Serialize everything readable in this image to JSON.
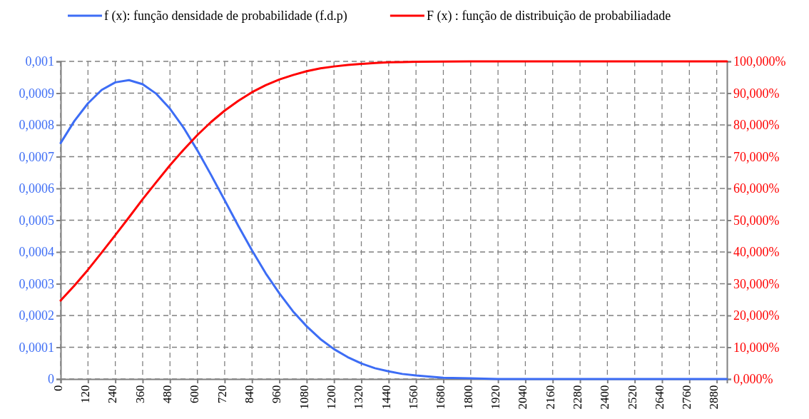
{
  "chart_data": {
    "type": "line",
    "x": [
      0,
      60,
      120,
      180,
      240,
      300,
      360,
      420,
      480,
      540,
      600,
      660,
      720,
      780,
      840,
      900,
      960,
      1020,
      1080,
      1140,
      1200,
      1260,
      1320,
      1380,
      1440,
      1500,
      1560,
      1680,
      1800,
      1920,
      2040,
      2160,
      2280,
      2400,
      2520,
      2640,
      2760,
      2880,
      2925
    ],
    "series": [
      {
        "name": "f (x): função densidade de probabilidade (f.d.p)",
        "color": "#3d6df5",
        "values": [
          0.000743,
          0.000812,
          0.000868,
          0.00091,
          0.000934,
          0.000941,
          0.000928,
          0.000898,
          0.000851,
          0.000791,
          0.00072,
          0.000643,
          0.000563,
          0.000482,
          0.000405,
          0.000333,
          0.00027,
          0.000213,
          0.000166,
          0.000126,
          9.4e-05,
          6.9e-05,
          4.9e-05,
          3.4e-05,
          2.4e-05,
          1.6e-05,
          1.1e-05,
          4e-06,
          2e-06,
          0,
          0,
          0,
          0,
          0,
          0,
          0,
          0,
          0,
          0
        ]
      },
      {
        "name": "F (x) : função de distribuição de probabiliadade",
        "color": "#ff0000",
        "axis": "y2",
        "values": [
          24.7,
          29.4,
          34.4,
          39.8,
          45.3,
          50.9,
          56.6,
          62,
          67.3,
          72.2,
          76.8,
          80.9,
          84.5,
          87.6,
          90.3,
          92.5,
          94.3,
          95.7,
          96.9,
          97.8,
          98.4,
          98.9,
          99.2,
          99.5,
          99.7,
          99.8,
          99.9,
          99.95,
          99.98,
          100,
          100,
          100,
          100,
          100,
          100,
          100,
          100,
          100,
          100
        ]
      }
    ],
    "xlim": [
      0,
      2925
    ],
    "xticks": [
      0,
      120,
      240,
      360,
      480,
      600,
      720,
      840,
      960,
      1080,
      1200,
      1320,
      1440,
      1560,
      1680,
      1800,
      1920,
      2040,
      2160,
      2280,
      2400,
      2520,
      2640,
      2760,
      2880
    ],
    "ylim": [
      0,
      0.001
    ],
    "yticks": [
      0,
      {
        "value": 0.0001,
        "label": "0,0001"
      },
      {
        "value": 0.0002,
        "label": "0,0002"
      },
      {
        "value": 0.0003,
        "label": "0,0003"
      },
      {
        "value": 0.0004,
        "label": "0,0004"
      },
      {
        "value": 0.0005,
        "label": "0,0005"
      },
      {
        "value": 0.0006,
        "label": "0,0006"
      },
      {
        "value": 0.0007,
        "label": "0,0007"
      },
      {
        "value": 0.0008,
        "label": "0,0008"
      },
      {
        "value": 0.0009,
        "label": "0,0009"
      },
      {
        "value": 0.001,
        "label": "0,001"
      }
    ],
    "y2lim": [
      0,
      100
    ],
    "y2ticks": [
      {
        "value": 0,
        "label": "0,000%"
      },
      {
        "value": 10,
        "label": "10,000%"
      },
      {
        "value": 20,
        "label": "20,000%"
      },
      {
        "value": 30,
        "label": "30,000%"
      },
      {
        "value": 40,
        "label": "40,000%"
      },
      {
        "value": 50,
        "label": "50,000%"
      },
      {
        "value": 60,
        "label": "60,000%"
      },
      {
        "value": 70,
        "label": "70,000%"
      },
      {
        "value": 80,
        "label": "80,000%"
      },
      {
        "value": 90,
        "label": "90,000%"
      },
      {
        "value": 100,
        "label": "100,000%"
      }
    ],
    "grid": true,
    "legend": "top",
    "line_style": "solid"
  }
}
